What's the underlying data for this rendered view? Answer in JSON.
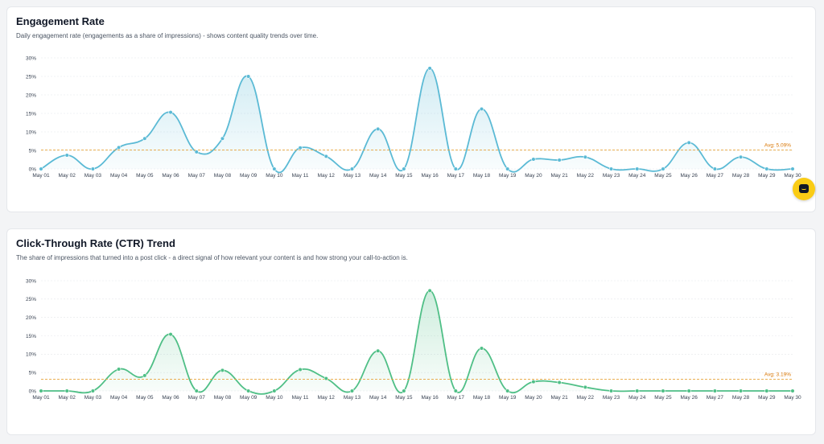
{
  "colors": {
    "engagement_line": "#5bbad5",
    "ctr_line": "#4fbf86",
    "avg_line": "#e7a43a",
    "grid": "#e5e7eb",
    "chat_button": "#facc15"
  },
  "chat": {
    "icon": "chat-bubble-icon"
  },
  "chart_data": [
    {
      "type": "area",
      "title": "Engagement Rate",
      "subtitle": "Daily engagement rate (engagements as a share of impressions) - shows content quality trends over time.",
      "categories": [
        "May 01",
        "May 02",
        "May 03",
        "May 04",
        "May 05",
        "May 06",
        "May 07",
        "May 08",
        "May 09",
        "May 10",
        "May 11",
        "May 12",
        "May 13",
        "May 14",
        "May 15",
        "May 16",
        "May 17",
        "May 18",
        "May 19",
        "May 20",
        "May 21",
        "May 22",
        "May 23",
        "May 24",
        "May 25",
        "May 26",
        "May 27",
        "May 28",
        "May 29",
        "May 30"
      ],
      "values": [
        0,
        3.7,
        0,
        5.8,
        8.2,
        15.3,
        4.6,
        8.2,
        25.0,
        0,
        5.7,
        3.4,
        0,
        10.8,
        0,
        27.2,
        0,
        16.2,
        0,
        2.6,
        2.4,
        3.2,
        0,
        0,
        0,
        7.1,
        0,
        3.2,
        0,
        0
      ],
      "y_ticks": [
        "0%",
        "5%",
        "10%",
        "15%",
        "20%",
        "25%",
        "30%"
      ],
      "ylim": [
        0,
        30
      ],
      "grid": true,
      "average": 5.09,
      "average_label": "Avg: 5.09%"
    },
    {
      "type": "area",
      "title": "Click-Through Rate (CTR) Trend",
      "subtitle": "The share of impressions that turned into a post click - a direct signal of how relevant your content is and how strong your call-to-action is.",
      "categories": [
        "May 01",
        "May 02",
        "May 03",
        "May 04",
        "May 05",
        "May 06",
        "May 07",
        "May 08",
        "May 09",
        "May 10",
        "May 11",
        "May 12",
        "May 13",
        "May 14",
        "May 15",
        "May 16",
        "May 17",
        "May 18",
        "May 19",
        "May 20",
        "May 21",
        "May 22",
        "May 23",
        "May 24",
        "May 25",
        "May 26",
        "May 27",
        "May 28",
        "May 29",
        "May 30"
      ],
      "values": [
        0,
        0,
        0,
        5.9,
        4.2,
        15.4,
        0,
        5.6,
        0,
        0,
        5.8,
        3.4,
        0,
        10.9,
        0,
        27.3,
        0,
        11.6,
        0,
        2.5,
        2.3,
        1.0,
        0,
        0,
        0,
        0,
        0,
        0,
        0,
        0
      ],
      "y_ticks": [
        "0%",
        "5%",
        "10%",
        "15%",
        "20%",
        "25%",
        "30%"
      ],
      "ylim": [
        0,
        30
      ],
      "grid": true,
      "average": 3.19,
      "average_label": "Avg: 3.19%"
    }
  ]
}
